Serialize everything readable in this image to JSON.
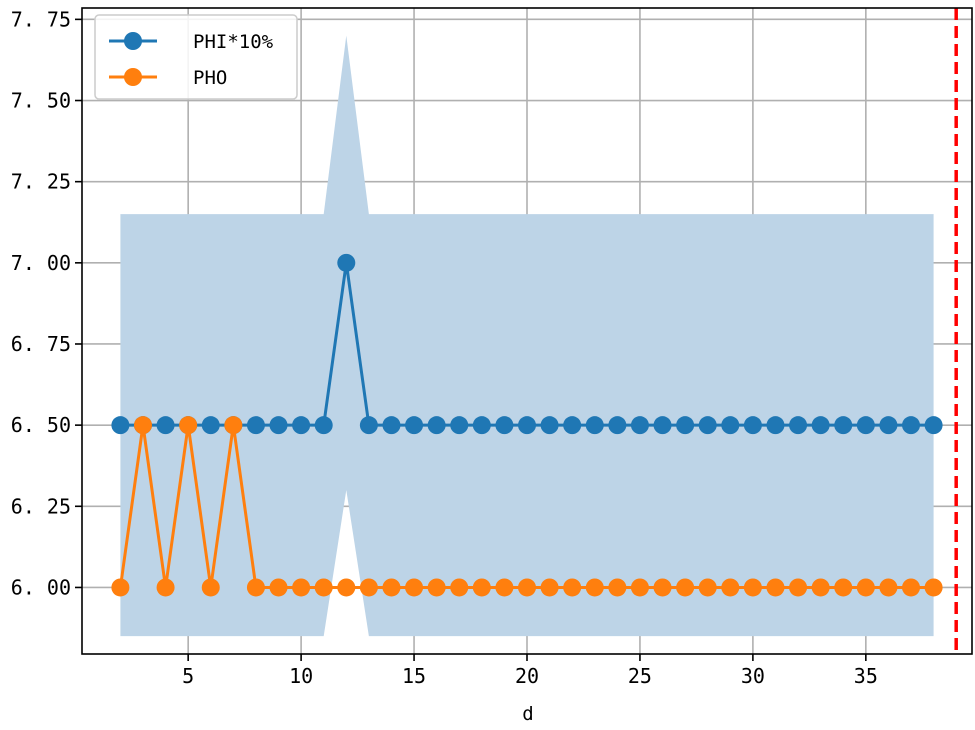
{
  "chart_data": {
    "type": "line",
    "xlabel": "d",
    "ylabel": "",
    "title": "",
    "xlim": [
      0.3,
      39.7
    ],
    "ylim": [
      5.795,
      7.785
    ],
    "x_ticks": [
      5,
      10,
      15,
      20,
      25,
      30,
      35
    ],
    "y_ticks": [
      6.0,
      6.25,
      6.5,
      6.75,
      7.0,
      7.25,
      7.5,
      7.75
    ],
    "y_tick_labels": [
      "6. 00",
      "6. 25",
      "6. 50",
      "6. 75",
      "7. 00",
      "7. 25",
      "7. 50",
      "7. 75"
    ],
    "grid": true,
    "legend_position": "upper-left",
    "x": [
      2,
      3,
      4,
      5,
      6,
      7,
      8,
      9,
      10,
      11,
      12,
      13,
      14,
      15,
      16,
      17,
      18,
      19,
      20,
      21,
      22,
      23,
      24,
      25,
      26,
      27,
      28,
      29,
      30,
      31,
      32,
      33,
      34,
      35,
      36,
      37,
      38
    ],
    "series": [
      {
        "name": "PHI*10%",
        "color": "#1f77b4",
        "values": [
          6.5,
          6.5,
          6.5,
          6.5,
          6.5,
          6.5,
          6.5,
          6.5,
          6.5,
          6.5,
          7.0,
          6.5,
          6.5,
          6.5,
          6.5,
          6.5,
          6.5,
          6.5,
          6.5,
          6.5,
          6.5,
          6.5,
          6.5,
          6.5,
          6.5,
          6.5,
          6.5,
          6.5,
          6.5,
          6.5,
          6.5,
          6.5,
          6.5,
          6.5,
          6.5,
          6.5,
          6.5
        ]
      },
      {
        "name": "PHO",
        "color": "#ff7f0e",
        "values": [
          6.0,
          6.5,
          6.0,
          6.5,
          6.0,
          6.5,
          6.0,
          6.0,
          6.0,
          6.0,
          6.0,
          6.0,
          6.0,
          6.0,
          6.0,
          6.0,
          6.0,
          6.0,
          6.0,
          6.0,
          6.0,
          6.0,
          6.0,
          6.0,
          6.0,
          6.0,
          6.0,
          6.0,
          6.0,
          6.0,
          6.0,
          6.0,
          6.0,
          6.0,
          6.0,
          6.0,
          6.0
        ]
      }
    ],
    "band": {
      "color": "#bdd4e7",
      "x": [
        2,
        11,
        12,
        13,
        38
      ],
      "upper": [
        7.15,
        7.15,
        7.7,
        7.15,
        7.15
      ],
      "lower": [
        5.85,
        5.85,
        6.3,
        5.85,
        5.85
      ]
    },
    "vline": {
      "x": 39,
      "color": "#ff0000",
      "style": "dashed"
    }
  }
}
